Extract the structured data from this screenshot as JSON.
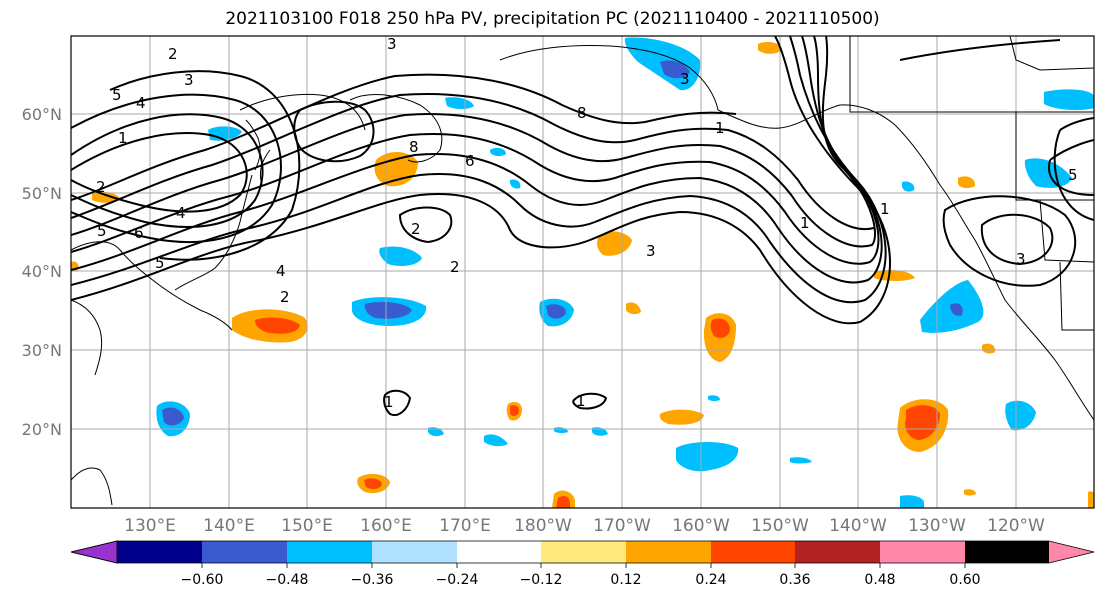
{
  "title": "2021103100 F018 250 hPa PV, precipitation PC (2021110400 - 2021110500)",
  "lat_labels": [
    "60°N",
    "50°N",
    "40°N",
    "30°N",
    "20°N"
  ],
  "lon_labels": [
    "130°E",
    "140°E",
    "150°E",
    "160°E",
    "170°E",
    "180°W",
    "170°W",
    "160°W",
    "150°W",
    "140°W",
    "130°W",
    "120°W"
  ],
  "colorbar": {
    "colors": [
      "#9a32cd",
      "#00008b",
      "#3a5bd0",
      "#00bfff",
      "#b0e2ff",
      "#ffffff",
      "#ffea80",
      "#ffa500",
      "#ff4500",
      "#b22222",
      "#ff88aa"
    ],
    "tick_labels": [
      "−0.60",
      "−0.48",
      "−0.36",
      "−0.24",
      "−0.12",
      "0.12",
      "0.24",
      "0.36",
      "0.48",
      "0.60"
    ]
  },
  "contour_labels": [
    "5",
    "4",
    "1",
    "2",
    "5",
    "6",
    "4",
    "5",
    "2",
    "3",
    "2",
    "3",
    "8",
    "8",
    "6",
    "2",
    "4",
    "2",
    "3",
    "1",
    "1",
    "3",
    "1",
    "1",
    "1",
    "3",
    "5"
  ]
}
